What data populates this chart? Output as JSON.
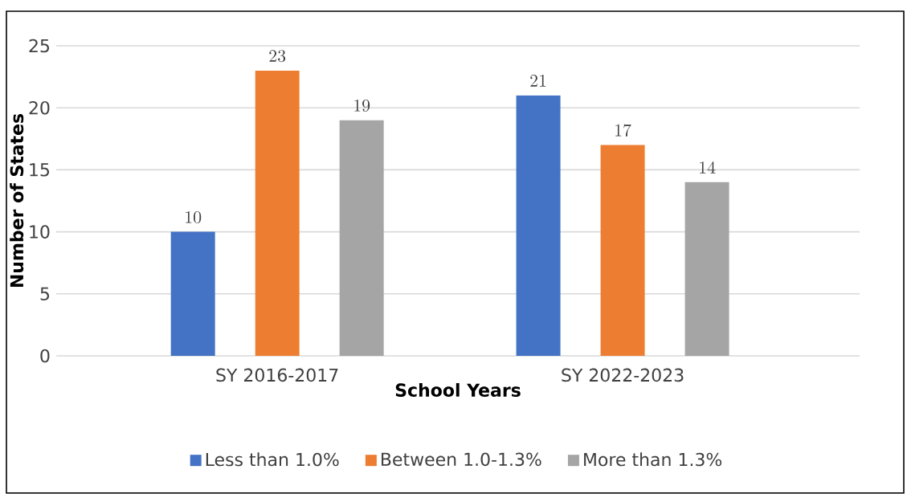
{
  "chart_data": {
    "type": "bar",
    "xlabel": "School Years",
    "ylabel": "Number of States",
    "categories": [
      "SY 2016-2017",
      "SY 2022-2023"
    ],
    "series": [
      {
        "name": "Less than 1.0%",
        "color": "#4472c4",
        "values": [
          10,
          21
        ]
      },
      {
        "name": "Between 1.0-1.3%",
        "color": "#ed7d31",
        "values": [
          23,
          17
        ]
      },
      {
        "name": "More than 1.3%",
        "color": "#a5a5a5",
        "values": [
          19,
          14
        ]
      }
    ],
    "ylim": [
      0,
      25
    ],
    "yticks": [
      0,
      5,
      10,
      15,
      20,
      25
    ],
    "grid": "y",
    "legend": "bottom",
    "data_labels": true
  }
}
